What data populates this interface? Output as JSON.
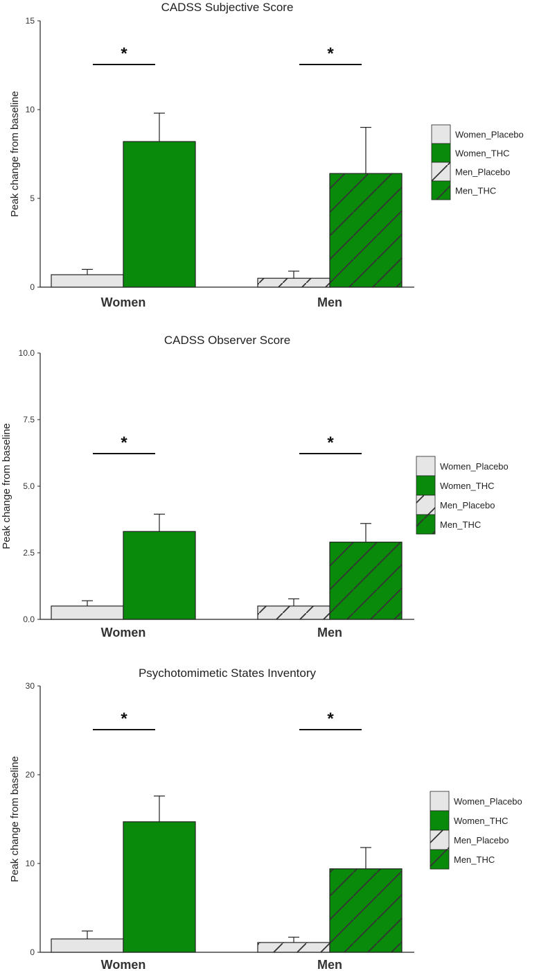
{
  "colors": {
    "placebo": "#e6e6e6",
    "thc": "#0a8a0a",
    "hatch": "#333333",
    "axis": "#222222"
  },
  "legend": [
    "Women_Placebo",
    "Women_THC",
    "Men_Placebo",
    "Men_THC"
  ],
  "chart_data": [
    {
      "type": "bar",
      "title": "CADSS Subjective Score",
      "ylabel": "Peak change from baseline",
      "xlabel": "",
      "categories": [
        "Women",
        "Men"
      ],
      "series": [
        {
          "name": "Women_Placebo",
          "values": [
            0.7,
            null
          ],
          "errors": [
            0.3,
            null
          ]
        },
        {
          "name": "Women_THC",
          "values": [
            8.2,
            null
          ],
          "errors": [
            1.6,
            null
          ]
        },
        {
          "name": "Men_Placebo",
          "values": [
            null,
            0.5
          ],
          "errors": [
            null,
            0.4
          ]
        },
        {
          "name": "Men_THC",
          "values": [
            null,
            6.4
          ],
          "errors": [
            null,
            2.6
          ]
        }
      ],
      "ylim": [
        0,
        15
      ],
      "yticks": [
        0,
        5,
        10,
        15
      ],
      "ytick_labels": [
        "0",
        "5",
        "10",
        "15"
      ],
      "significance": [
        {
          "category": "Women",
          "label": "*"
        },
        {
          "category": "Men",
          "label": "*"
        }
      ],
      "legend_position": "right",
      "grid": false
    },
    {
      "type": "bar",
      "title": "CADSS Observer Score",
      "ylabel": "Peak change from baseline",
      "xlabel": "",
      "categories": [
        "Women",
        "Men"
      ],
      "series": [
        {
          "name": "Women_Placebo",
          "values": [
            0.5,
            null
          ],
          "errors": [
            0.2,
            null
          ]
        },
        {
          "name": "Women_THC",
          "values": [
            3.3,
            null
          ],
          "errors": [
            0.65,
            null
          ]
        },
        {
          "name": "Men_Placebo",
          "values": [
            null,
            0.5
          ],
          "errors": [
            null,
            0.27
          ]
        },
        {
          "name": "Men_THC",
          "values": [
            null,
            2.9
          ],
          "errors": [
            null,
            0.7
          ]
        }
      ],
      "ylim": [
        0,
        10
      ],
      "yticks": [
        0,
        2.5,
        5,
        7.5,
        10
      ],
      "ytick_labels": [
        "0.0",
        "2.5",
        "5.0",
        "7.5",
        "10.0"
      ],
      "significance": [
        {
          "category": "Women",
          "label": "*"
        },
        {
          "category": "Men",
          "label": "*"
        }
      ],
      "legend_position": "right",
      "grid": false
    },
    {
      "type": "bar",
      "title": "Psychotomimetic States Inventory",
      "ylabel": "Peak change from baseline",
      "xlabel": "",
      "categories": [
        "Women",
        "Men"
      ],
      "series": [
        {
          "name": "Women_Placebo",
          "values": [
            1.5,
            null
          ],
          "errors": [
            0.9,
            null
          ]
        },
        {
          "name": "Women_THC",
          "values": [
            14.7,
            null
          ],
          "errors": [
            2.9,
            null
          ]
        },
        {
          "name": "Men_Placebo",
          "values": [
            null,
            1.1
          ],
          "errors": [
            null,
            0.6
          ]
        },
        {
          "name": "Men_THC",
          "values": [
            null,
            9.4
          ],
          "errors": [
            null,
            2.4
          ]
        }
      ],
      "ylim": [
        0,
        30
      ],
      "yticks": [
        0,
        10,
        20,
        30
      ],
      "ytick_labels": [
        "0",
        "10",
        "20",
        "30"
      ],
      "significance": [
        {
          "category": "Women",
          "label": "*"
        },
        {
          "category": "Men",
          "label": "*"
        }
      ],
      "legend_position": "right",
      "grid": false
    }
  ]
}
